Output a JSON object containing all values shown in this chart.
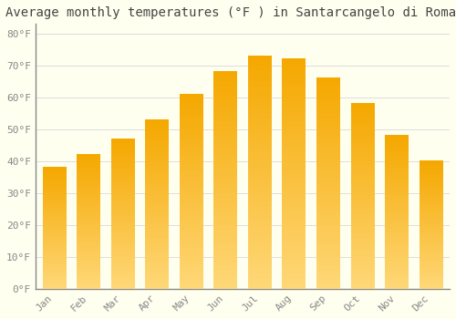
{
  "title": "Average monthly temperatures (°F ) in Santarcangelo di Romagna",
  "months": [
    "Jan",
    "Feb",
    "Mar",
    "Apr",
    "May",
    "Jun",
    "Jul",
    "Aug",
    "Sep",
    "Oct",
    "Nov",
    "Dec"
  ],
  "values": [
    38,
    42,
    47,
    53,
    61,
    68,
    73,
    72,
    66,
    58,
    48,
    40
  ],
  "bar_color_top": "#F5A800",
  "bar_color_bottom": "#FFD878",
  "background_color": "#FFFFF0",
  "grid_color": "#DDDDDD",
  "ytick_labels": [
    "0°F",
    "10°F",
    "20°F",
    "30°F",
    "40°F",
    "50°F",
    "60°F",
    "70°F",
    "80°F"
  ],
  "ytick_values": [
    0,
    10,
    20,
    30,
    40,
    50,
    60,
    70,
    80
  ],
  "ylim": [
    0,
    83
  ],
  "title_fontsize": 10,
  "tick_fontsize": 8,
  "tick_color": "#888888",
  "left_spine_color": "#888888",
  "bottom_spine_color": "#888888",
  "bar_width": 0.68
}
